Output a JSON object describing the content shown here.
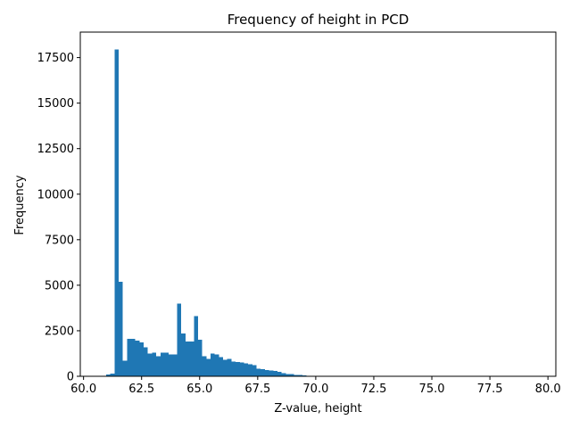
{
  "chart_data": {
    "type": "bar",
    "subtype": "histogram",
    "title": "Frequency of height in PCD",
    "xlabel": "Z-value, height",
    "ylabel": "Frequency",
    "xlim": [
      59.86,
      80.34
    ],
    "ylim": [
      0,
      18900
    ],
    "grid": false,
    "legend": "none",
    "bar_color": "#1f77b4",
    "x_ticks": [
      {
        "value": 60.0,
        "label": "60.0"
      },
      {
        "value": 62.5,
        "label": "62.5"
      },
      {
        "value": 65.0,
        "label": "65.0"
      },
      {
        "value": 67.5,
        "label": "67.5"
      },
      {
        "value": 70.0,
        "label": "70.0"
      },
      {
        "value": 72.5,
        "label": "72.5"
      },
      {
        "value": 75.0,
        "label": "75.0"
      },
      {
        "value": 77.5,
        "label": "77.5"
      },
      {
        "value": 80.0,
        "label": "80.0"
      }
    ],
    "y_ticks": [
      {
        "value": 0,
        "label": "0"
      },
      {
        "value": 2500,
        "label": "2500"
      },
      {
        "value": 5000,
        "label": "5000"
      },
      {
        "value": 7500,
        "label": "7500"
      },
      {
        "value": 10000,
        "label": "10000"
      },
      {
        "value": 12500,
        "label": "12500"
      },
      {
        "value": 15000,
        "label": "15000"
      },
      {
        "value": 17500,
        "label": "17500"
      }
    ],
    "bin_start": 60.79,
    "bin_width": 0.18,
    "values": [
      10,
      100,
      150,
      17950,
      5200,
      850,
      2050,
      2050,
      1950,
      1850,
      1600,
      1250,
      1300,
      1100,
      1300,
      1300,
      1200,
      1200,
      4000,
      2350,
      1900,
      1900,
      3300,
      2000,
      1100,
      950,
      1250,
      1200,
      1050,
      900,
      950,
      800,
      780,
      750,
      700,
      650,
      600,
      420,
      380,
      350,
      330,
      300,
      250,
      180,
      130,
      120,
      80,
      70,
      40,
      30,
      20,
      15,
      10
    ]
  }
}
